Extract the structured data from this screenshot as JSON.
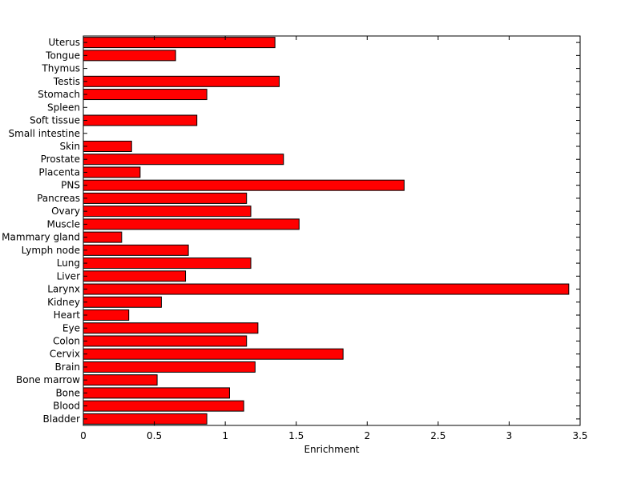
{
  "chart_data": {
    "type": "bar",
    "orientation": "horizontal",
    "title": "",
    "xlabel": "Enrichment",
    "ylabel": "",
    "xlim": [
      0,
      3.5
    ],
    "xticks": [
      0,
      0.5,
      1,
      1.5,
      2,
      2.5,
      3,
      3.5
    ],
    "xtick_labels": [
      "0",
      "0.5",
      "1",
      "1.5",
      "2",
      "2.5",
      "3",
      "3.5"
    ],
    "grid": false,
    "legend": "none",
    "bar_color": "#ff0000",
    "bar_edge_color": "#000000",
    "categories": [
      "Bladder",
      "Blood",
      "Bone",
      "Bone marrow",
      "Brain",
      "Cervix",
      "Colon",
      "Eye",
      "Heart",
      "Kidney",
      "Larynx",
      "Liver",
      "Lung",
      "Lymph node",
      "Mammary gland",
      "Muscle",
      "Ovary",
      "Pancreas",
      "PNS",
      "Placenta",
      "Prostate",
      "Skin",
      "Small intestine",
      "Soft tissue",
      "Spleen",
      "Stomach",
      "Testis",
      "Thymus",
      "Tongue",
      "Uterus"
    ],
    "values": [
      0.87,
      1.13,
      1.03,
      0.52,
      1.21,
      1.83,
      1.15,
      1.23,
      0.32,
      0.55,
      3.42,
      0.72,
      1.18,
      0.74,
      0.27,
      1.52,
      1.18,
      1.15,
      2.26,
      0.4,
      1.41,
      0.34,
      0,
      0.8,
      0,
      0.87,
      1.38,
      0,
      0.65,
      1.35
    ]
  }
}
